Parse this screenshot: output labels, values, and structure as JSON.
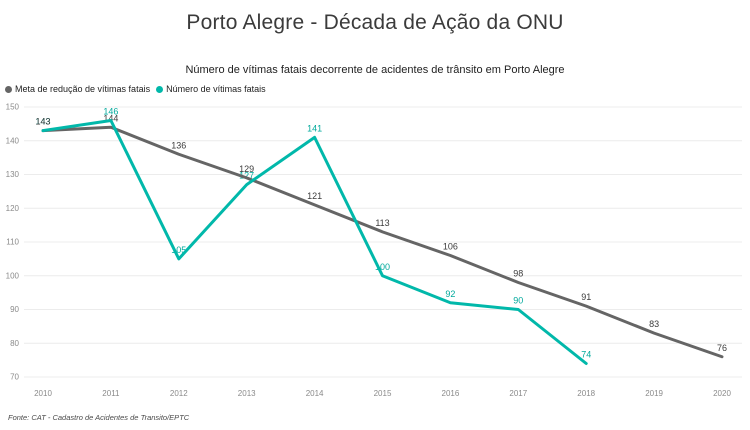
{
  "header": {
    "title": "Porto Alegre - Década de Ação da ONU"
  },
  "chart_data": {
    "type": "line",
    "title": "Número de vítimas fatais decorrente de acidentes de trânsito em Porto Alegre",
    "x": [
      2010,
      2011,
      2012,
      2013,
      2014,
      2015,
      2016,
      2017,
      2018,
      2019,
      2020
    ],
    "series": [
      {
        "name": "Meta de redução de vítimas fatais",
        "color": "#656565",
        "label_color": "#3c3c3c",
        "values": [
          143,
          144,
          136,
          129,
          121,
          113,
          106,
          98,
          91,
          83,
          76
        ]
      },
      {
        "name": "Número de vítimas fatais",
        "color": "#01b8aa",
        "label_color": "#01a99c",
        "values": [
          143,
          146,
          105,
          127,
          141,
          100,
          92,
          90,
          74,
          null,
          null
        ]
      }
    ],
    "ylim": [
      70,
      150
    ],
    "ytick_step": 10,
    "grid": true,
    "legend_position": "top-left",
    "data_labels": true,
    "axis_label_color": "#8a8a8a",
    "gridline_color": "#ececec"
  },
  "footer": {
    "source": "Fonte: CAT - Cadastro de Acidentes de Transito/EPTC"
  }
}
